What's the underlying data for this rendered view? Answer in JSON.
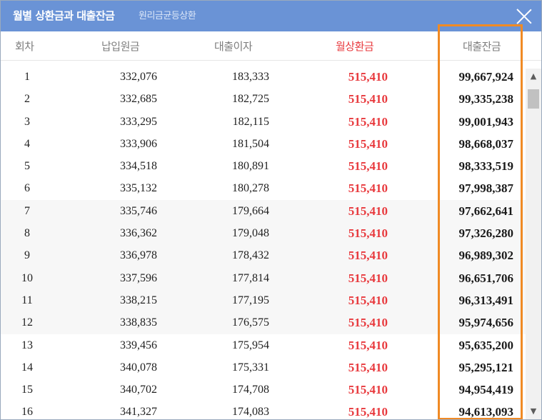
{
  "dialog": {
    "title": "월별 상환금과 대출잔금",
    "subtitle": "원리금균등상환"
  },
  "columns": {
    "no": "회차",
    "payment": "납입원금",
    "interest": "대출이자",
    "monthly": "월상환금",
    "balance": "대출잔금"
  },
  "colors": {
    "titlebar": "#6a93d6",
    "accent_red": "#e8393d",
    "highlight": "#f08a24"
  },
  "rows": [
    {
      "no": "1",
      "payment": "332,076",
      "interest": "183,333",
      "monthly": "515,410",
      "balance": "99,667,924"
    },
    {
      "no": "2",
      "payment": "332,685",
      "interest": "182,725",
      "monthly": "515,410",
      "balance": "99,335,238"
    },
    {
      "no": "3",
      "payment": "333,295",
      "interest": "182,115",
      "monthly": "515,410",
      "balance": "99,001,943"
    },
    {
      "no": "4",
      "payment": "333,906",
      "interest": "181,504",
      "monthly": "515,410",
      "balance": "98,668,037"
    },
    {
      "no": "5",
      "payment": "334,518",
      "interest": "180,891",
      "monthly": "515,410",
      "balance": "98,333,519"
    },
    {
      "no": "6",
      "payment": "335,132",
      "interest": "180,278",
      "monthly": "515,410",
      "balance": "97,998,387"
    },
    {
      "no": "7",
      "payment": "335,746",
      "interest": "179,664",
      "monthly": "515,410",
      "balance": "97,662,641"
    },
    {
      "no": "8",
      "payment": "336,362",
      "interest": "179,048",
      "monthly": "515,410",
      "balance": "97,326,280"
    },
    {
      "no": "9",
      "payment": "336,978",
      "interest": "178,432",
      "monthly": "515,410",
      "balance": "96,989,302"
    },
    {
      "no": "10",
      "payment": "337,596",
      "interest": "177,814",
      "monthly": "515,410",
      "balance": "96,651,706"
    },
    {
      "no": "11",
      "payment": "338,215",
      "interest": "177,195",
      "monthly": "515,410",
      "balance": "96,313,491"
    },
    {
      "no": "12",
      "payment": "338,835",
      "interest": "176,575",
      "monthly": "515,410",
      "balance": "95,974,656"
    },
    {
      "no": "13",
      "payment": "339,456",
      "interest": "175,954",
      "monthly": "515,410",
      "balance": "95,635,200"
    },
    {
      "no": "14",
      "payment": "340,078",
      "interest": "175,331",
      "monthly": "515,410",
      "balance": "95,295,121"
    },
    {
      "no": "15",
      "payment": "340,702",
      "interest": "174,708",
      "monthly": "515,410",
      "balance": "94,954,419"
    },
    {
      "no": "16",
      "payment": "341,327",
      "interest": "174,083",
      "monthly": "515,410",
      "balance": "94,613,093"
    }
  ],
  "scrollbar": {
    "up_icon": "chevron-up-icon",
    "down_icon": "chevron-down-icon"
  }
}
